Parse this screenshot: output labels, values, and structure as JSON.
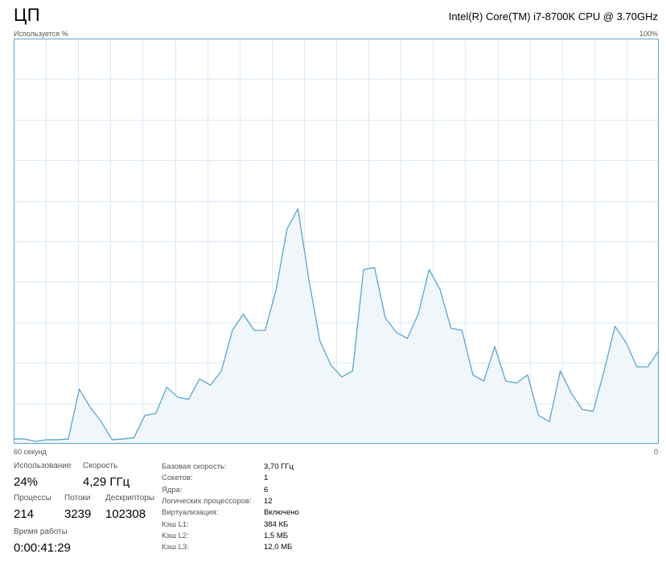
{
  "header": {
    "title": "ЦП",
    "cpu_name": "Intel(R) Core(TM) i7-8700K CPU @ 3.70GHz"
  },
  "chart_data": {
    "type": "area",
    "ylabel": "Используется %",
    "ymax_label": "100%",
    "x_left_label": "60 секунд",
    "x_right_label": "0",
    "ylim": [
      0,
      100
    ],
    "grid": true,
    "line_color": "#5aa5cf",
    "fill_color": "#f1f6fb",
    "values": [
      1.2,
      1.2,
      0.6,
      1.0,
      1.0,
      1.2,
      13.5,
      9.0,
      5.5,
      1.0,
      1.2,
      1.5,
      7.0,
      7.5,
      14.0,
      11.5,
      11.0,
      16.0,
      14.5,
      18.0,
      28.0,
      32.0,
      28.0,
      28.0,
      38.0,
      53.0,
      58.0,
      40.5,
      25.5,
      19.5,
      16.5,
      18.0,
      43.0,
      43.5,
      31.0,
      27.5,
      26.0,
      32.0,
      43.0,
      38.0,
      28.5,
      28.0,
      17.0,
      15.5,
      24.0,
      15.5,
      15.0,
      17.0,
      7.0,
      5.5,
      18.0,
      12.5,
      8.5,
      8.0,
      18.0,
      29.0,
      25.0,
      19.0,
      19.0,
      23.0
    ]
  },
  "stats": {
    "usage": {
      "label": "Использование",
      "value": "24%"
    },
    "speed": {
      "label": "Скорость",
      "value": "4,29 ГГц"
    },
    "processes": {
      "label": "Процессы",
      "value": "214"
    },
    "threads": {
      "label": "Потоки",
      "value": "3239"
    },
    "handles": {
      "label": "Дескрипторы",
      "value": "102308"
    },
    "uptime": {
      "label": "Время работы",
      "value": "0:00:41:29"
    }
  },
  "info": [
    {
      "label": "Базовая скорость:",
      "value": "3,70 ГГц"
    },
    {
      "label": "Сокетов:",
      "value": "1"
    },
    {
      "label": "Ядра:",
      "value": "6"
    },
    {
      "label": "Логических процессоров:",
      "value": "12"
    },
    {
      "label": "Виртуализация:",
      "value": "Включено"
    },
    {
      "label": "Кэш L1:",
      "value": "384 КБ"
    },
    {
      "label": "Кэш L2:",
      "value": "1,5 МБ"
    },
    {
      "label": "Кэш L3:",
      "value": "12,0 МБ"
    }
  ]
}
